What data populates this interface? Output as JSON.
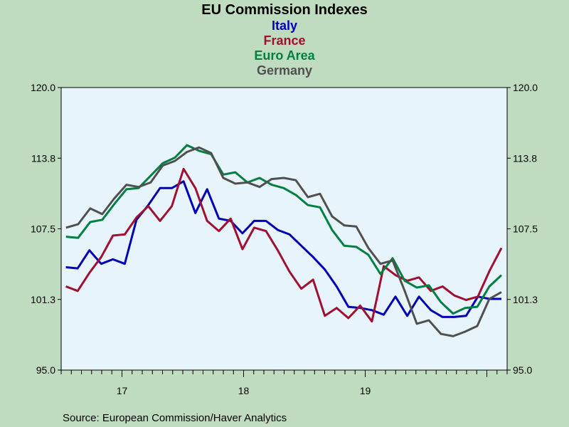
{
  "chart_data": {
    "type": "line",
    "title": "EU Commission Indexes",
    "series": [
      {
        "name": "Italy",
        "color": "#0000b4",
        "values": [
          104.1,
          104.0,
          105.6,
          104.4,
          104.8,
          104.4,
          108.3,
          109.6,
          111.1,
          111.1,
          111.7,
          108.9,
          111.0,
          108.4,
          108.2,
          107.1,
          108.2,
          108.2,
          107.4,
          107.0,
          106.0,
          105.0,
          103.9,
          102.4,
          100.6,
          100.5,
          100.3,
          99.9,
          101.5,
          99.8,
          101.5,
          100.3,
          99.7,
          99.7,
          99.8,
          101.5,
          101.3,
          101.3
        ]
      },
      {
        "name": "France",
        "color": "#a01030",
        "values": [
          102.4,
          102.0,
          103.6,
          105.0,
          106.9,
          107.0,
          108.5,
          109.5,
          108.2,
          109.5,
          112.8,
          111.1,
          108.2,
          107.3,
          108.4,
          105.7,
          107.6,
          107.3,
          105.6,
          103.7,
          102.2,
          103.0,
          99.8,
          100.5,
          99.6,
          100.7,
          99.3,
          104.2,
          103.4,
          102.9,
          103.2,
          102.0,
          102.4,
          101.6,
          101.2,
          101.5,
          103.8,
          105.8
        ]
      },
      {
        "name": "Euro Area",
        "color": "#008040",
        "values": [
          106.8,
          106.7,
          108.1,
          108.3,
          109.7,
          111.0,
          111.1,
          112.2,
          113.3,
          113.8,
          114.9,
          114.4,
          114.1,
          112.3,
          112.5,
          111.6,
          112.0,
          111.4,
          111.1,
          110.5,
          109.6,
          109.4,
          107.4,
          106.0,
          105.9,
          105.2,
          103.5,
          104.9,
          102.9,
          102.3,
          102.5,
          101.0,
          100.0,
          100.5,
          100.6,
          102.4,
          103.4
        ]
      },
      {
        "name": "Germany",
        "color": "#505050",
        "values": [
          107.6,
          107.9,
          109.3,
          108.8,
          110.2,
          111.4,
          111.2,
          111.6,
          113.1,
          113.5,
          114.3,
          114.7,
          114.2,
          112.0,
          111.5,
          111.6,
          111.2,
          111.9,
          112.0,
          111.8,
          110.3,
          110.6,
          108.6,
          107.8,
          107.7,
          105.8,
          104.4,
          104.7,
          102.0,
          99.1,
          99.4,
          98.2,
          98.0,
          98.4,
          98.9,
          101.3,
          101.9
        ]
      }
    ],
    "x_start_month_index": 0,
    "ylim": [
      95.0,
      120.0
    ],
    "yticks": [
      "95.0",
      "101.3",
      "107.5",
      "113.8",
      "120.0"
    ],
    "ytick_values": [
      95.0,
      101.25,
      107.5,
      113.75,
      120.0
    ],
    "xtick_labels": [
      "17",
      "18",
      "19"
    ],
    "legend_placement": "top-center",
    "grid": false,
    "plot_background": "#e8f4fc",
    "frame_background": "#c0dcc0",
    "source": "Source:  European Commission/Haver Analytics"
  }
}
